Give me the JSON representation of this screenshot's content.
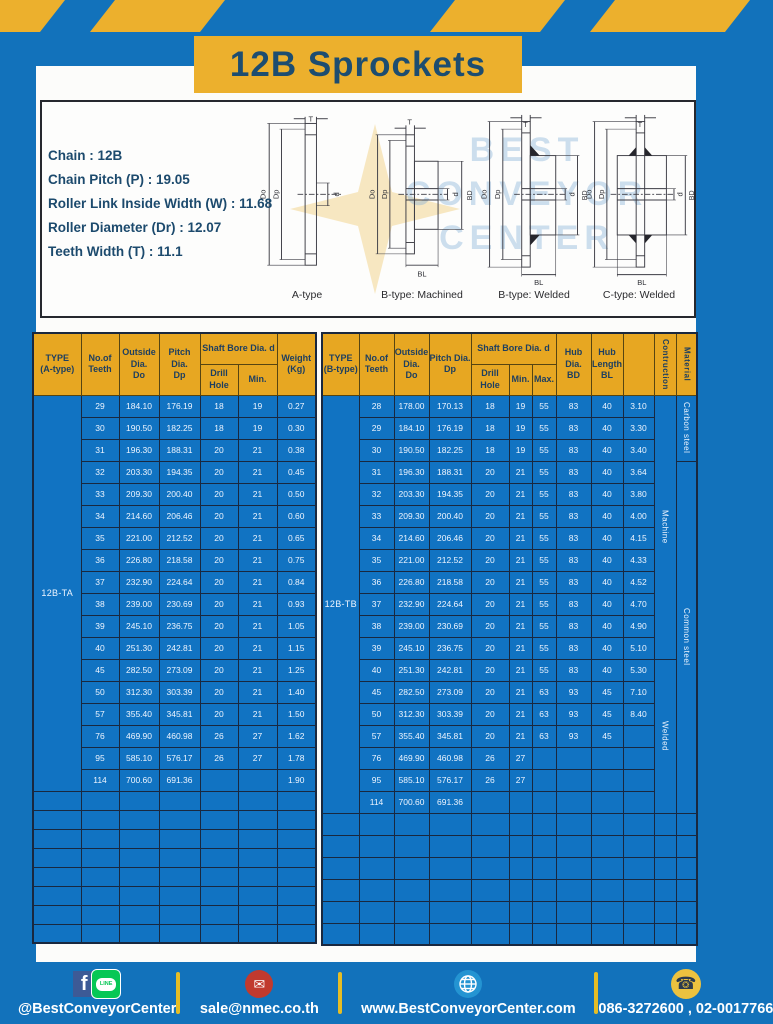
{
  "title": "12B Sprockets",
  "specs": [
    "Chain  :  12B",
    "Chain Pitch (P)  :  19.05",
    "Roller Link Inside Width (W) : 11.68",
    "Roller Diameter (Dr)  : 12.07",
    "Teeth Width (T)  :  11.1"
  ],
  "watermark": [
    "BEST",
    "CONVEYOR",
    "CENTER"
  ],
  "diagrams": {
    "dims": {
      "T": "T",
      "Do": "Do",
      "Dp": "Dp",
      "d": "d",
      "BD": "BD",
      "BL": "BL"
    },
    "captions": [
      "A-type",
      "B-type: Machined",
      "B-type: Welded",
      "C-type: Welded"
    ]
  },
  "table_a": {
    "headers": {
      "type": "TYPE\n(A-type)",
      "teeth": "No.of\nTeeth",
      "outside": "Outside\nDia.\nDo",
      "pitch": "Pitch Dia.\nDp",
      "shaft_bore": "Shaft Bore Dia. d",
      "drill": "Drill Hole",
      "min": "Min.",
      "weight": "Weight\n(Kg)"
    },
    "type_label": "12B-TA",
    "rows": [
      [
        "29",
        "184.10",
        "176.19",
        "18",
        "19",
        "0.27"
      ],
      [
        "30",
        "190.50",
        "182.25",
        "18",
        "19",
        "0.30"
      ],
      [
        "31",
        "196.30",
        "188.31",
        "20",
        "21",
        "0.38"
      ],
      [
        "32",
        "203.30",
        "194.35",
        "20",
        "21",
        "0.45"
      ],
      [
        "33",
        "209.30",
        "200.40",
        "20",
        "21",
        "0.50"
      ],
      [
        "34",
        "214.60",
        "206.46",
        "20",
        "21",
        "0.60"
      ],
      [
        "35",
        "221.00",
        "212.52",
        "20",
        "21",
        "0.65"
      ],
      [
        "36",
        "226.80",
        "218.58",
        "20",
        "21",
        "0.75"
      ],
      [
        "37",
        "232.90",
        "224.64",
        "20",
        "21",
        "0.84"
      ],
      [
        "38",
        "239.00",
        "230.69",
        "20",
        "21",
        "0.93"
      ],
      [
        "39",
        "245.10",
        "236.75",
        "20",
        "21",
        "1.05"
      ],
      [
        "40",
        "251.30",
        "242.81",
        "20",
        "21",
        "1.15"
      ],
      [
        "45",
        "282.50",
        "273.09",
        "20",
        "21",
        "1.25"
      ],
      [
        "50",
        "312.30",
        "303.39",
        "20",
        "21",
        "1.40"
      ],
      [
        "57",
        "355.40",
        "345.81",
        "20",
        "21",
        "1.50"
      ],
      [
        "76",
        "469.90",
        "460.98",
        "26",
        "27",
        "1.62"
      ],
      [
        "95",
        "585.10",
        "576.17",
        "26",
        "27",
        "1.78"
      ],
      [
        "114",
        "700.60",
        "691.36",
        "",
        "",
        "1.90"
      ]
    ],
    "empty_rows": 8,
    "empty_cols": 7
  },
  "table_b": {
    "headers": {
      "type": "TYPE\n(B-type)",
      "teeth": "No.of\nTeeth",
      "outside": "Outside\nDia.\nDo",
      "pitch": "Pitch Dia.\nDp",
      "shaft_bore": "Shaft Bore Dia. d",
      "drill": "Drill Hole",
      "min": "Min.",
      "max": "Max.",
      "hub_dia": "Hub Dia.\nBD",
      "hub_len": "Hub\nLength\nBL",
      "construction": "Contruction",
      "material": "Material"
    },
    "type_label": "12B-TB",
    "rows": [
      [
        "28",
        "178.00",
        "170.13",
        "18",
        "19",
        "55",
        "83",
        "40",
        "3.10"
      ],
      [
        "29",
        "184.10",
        "176.19",
        "18",
        "19",
        "55",
        "83",
        "40",
        "3.30"
      ],
      [
        "30",
        "190.50",
        "182.25",
        "18",
        "19",
        "55",
        "83",
        "40",
        "3.40"
      ],
      [
        "31",
        "196.30",
        "188.31",
        "20",
        "21",
        "55",
        "83",
        "40",
        "3.64"
      ],
      [
        "32",
        "203.30",
        "194.35",
        "20",
        "21",
        "55",
        "83",
        "40",
        "3.80"
      ],
      [
        "33",
        "209.30",
        "200.40",
        "20",
        "21",
        "55",
        "83",
        "40",
        "4.00"
      ],
      [
        "34",
        "214.60",
        "206.46",
        "20",
        "21",
        "55",
        "83",
        "40",
        "4.15"
      ],
      [
        "35",
        "221.00",
        "212.52",
        "20",
        "21",
        "55",
        "83",
        "40",
        "4.33"
      ],
      [
        "36",
        "226.80",
        "218.58",
        "20",
        "21",
        "55",
        "83",
        "40",
        "4.52"
      ],
      [
        "37",
        "232.90",
        "224.64",
        "20",
        "21",
        "55",
        "83",
        "40",
        "4.70"
      ],
      [
        "38",
        "239.00",
        "230.69",
        "20",
        "21",
        "55",
        "83",
        "40",
        "4.90"
      ],
      [
        "39",
        "245.10",
        "236.75",
        "20",
        "21",
        "55",
        "83",
        "40",
        "5.10"
      ],
      [
        "40",
        "251.30",
        "242.81",
        "20",
        "21",
        "55",
        "83",
        "40",
        "5.30"
      ],
      [
        "45",
        "282.50",
        "273.09",
        "20",
        "21",
        "63",
        "93",
        "45",
        "7.10"
      ],
      [
        "50",
        "312.30",
        "303.39",
        "20",
        "21",
        "63",
        "93",
        "45",
        "8.40"
      ],
      [
        "57",
        "355.40",
        "345.81",
        "20",
        "21",
        "63",
        "93",
        "45",
        ""
      ],
      [
        "76",
        "469.90",
        "460.98",
        "26",
        "27",
        "",
        "",
        "",
        ""
      ],
      [
        "95",
        "585.10",
        "576.17",
        "26",
        "27",
        "",
        "",
        "",
        ""
      ],
      [
        "114",
        "700.60",
        "691.36",
        "",
        "",
        "",
        "",
        "",
        ""
      ]
    ],
    "construction_spans": [
      {
        "label": "Machine",
        "start": 0,
        "span": 12
      },
      {
        "label": "Welded",
        "start": 12,
        "span": 7
      }
    ],
    "material_spans": [
      {
        "label": "Carbon steel",
        "start": 0,
        "span": 3
      },
      {
        "label": "Common  steel",
        "start": 3,
        "span": 16
      }
    ],
    "empty_rows": 6,
    "empty_cols": 12
  },
  "footer": {
    "facebook_letter": "f",
    "line_label": "LINE",
    "mail_glyph": "✉",
    "phone_glyph": "☎",
    "social_text": "@BestConveyorCenter",
    "email": "sale@nmec.co.th",
    "website": "www.BestConveyorCenter.com",
    "phones": "086-3272600 , 02-0017766"
  },
  "colors": {
    "page_blue": "#1272bb",
    "hazard_yellow": "#ecb02d",
    "header_orange": "#e7a722",
    "table_blue": "#1173c2",
    "title_navy": "#1d4d70",
    "divider_yellow": "#e5bd25"
  }
}
